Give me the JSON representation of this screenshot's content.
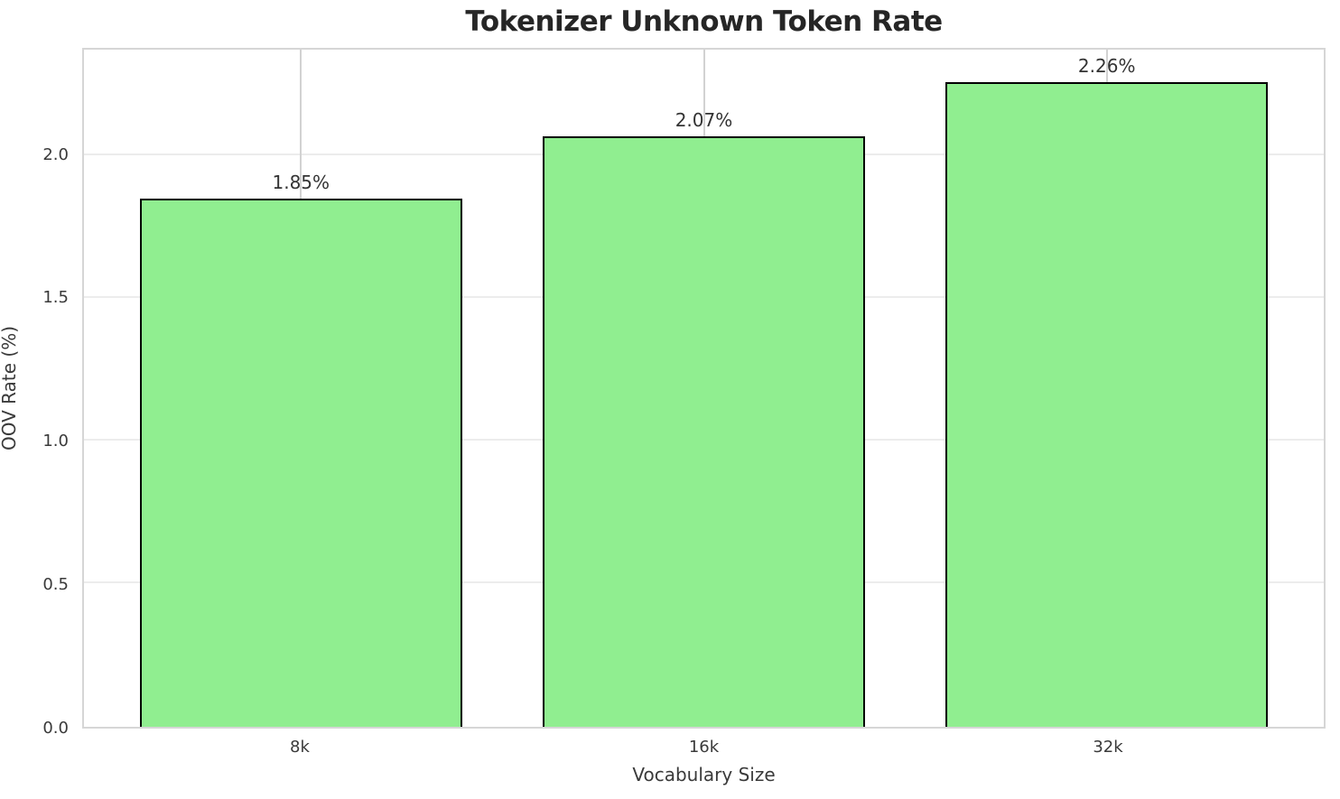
{
  "chart_data": {
    "type": "bar",
    "title": "Tokenizer Unknown Token Rate",
    "xlabel": "Vocabulary Size",
    "ylabel": "OOV Rate (%)",
    "categories": [
      "8k",
      "16k",
      "32k"
    ],
    "values": [
      1.85,
      2.07,
      2.26
    ],
    "bar_labels": [
      "1.85%",
      "2.07%",
      "2.26%"
    ],
    "ylim": [
      0,
      2.373
    ],
    "yticks": [
      {
        "value": 0.0,
        "label": "0.0"
      },
      {
        "value": 0.5,
        "label": "0.5"
      },
      {
        "value": 1.0,
        "label": "1.0"
      },
      {
        "value": 1.5,
        "label": "1.5"
      },
      {
        "value": 2.0,
        "label": "2.0"
      }
    ],
    "grid": {
      "horizontal": true,
      "vertical": true
    },
    "legend": "none",
    "colors": {
      "bar_fill": "#90EE90",
      "bar_edge": "#000000",
      "grid_horizontal": "#ececec",
      "grid_vertical": "#d2d2d2",
      "spine": "#d6d6d6",
      "title_text": "#262626",
      "tick_text": "#3a3a3a"
    }
  }
}
